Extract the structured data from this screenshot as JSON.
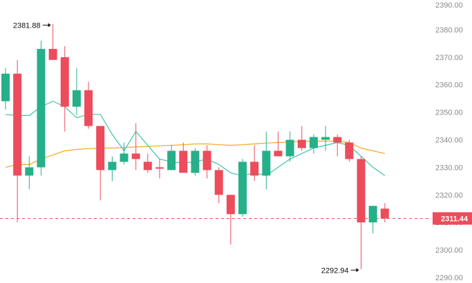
{
  "chart_data": {
    "type": "candlestick",
    "ylim": [
      2290,
      2390
    ],
    "y_ticks": [
      "2390.00",
      "2380.00",
      "2370.00",
      "2360.00",
      "2350.00",
      "2340.00",
      "2330.00",
      "2320.00",
      "2310.00",
      "2300.00",
      "2290.00"
    ],
    "grid": false,
    "colors": {
      "up": "#26b08a",
      "down": "#ec4c5b",
      "ma_short": "#3cc4a6",
      "ma_long": "#f4a81d",
      "current_price": "#ec4c5b",
      "axis_text": "#8a8a8a"
    },
    "candles": [
      {
        "open": 2354.0,
        "high": 2366.0,
        "low": 2351.0,
        "close": 2364.0
      },
      {
        "open": 2364.0,
        "high": 2369.0,
        "low": 2310.0,
        "close": 2327.0
      },
      {
        "open": 2327.0,
        "high": 2334.0,
        "low": 2322.0,
        "close": 2330.0
      },
      {
        "open": 2330.0,
        "high": 2376.0,
        "low": 2327.0,
        "close": 2373.0
      },
      {
        "open": 2373.0,
        "high": 2382.0,
        "low": 2369.0,
        "close": 2369.0
      },
      {
        "open": 2370.0,
        "high": 2374.0,
        "low": 2343.0,
        "close": 2352.0
      },
      {
        "open": 2352.0,
        "high": 2366.0,
        "low": 2349.0,
        "close": 2358.0
      },
      {
        "open": 2358.0,
        "high": 2361.0,
        "low": 2344.0,
        "close": 2345.0
      },
      {
        "open": 2345.0,
        "high": 2345.0,
        "low": 2318.0,
        "close": 2329.0
      },
      {
        "open": 2329.0,
        "high": 2334.0,
        "low": 2325.0,
        "close": 2332.0
      },
      {
        "open": 2332.0,
        "high": 2339.0,
        "low": 2331.0,
        "close": 2335.0
      },
      {
        "open": 2335.0,
        "high": 2346.0,
        "low": 2329.0,
        "close": 2333.0
      },
      {
        "open": 2332.0,
        "high": 2335.0,
        "low": 2328.0,
        "close": 2329.0
      },
      {
        "open": 2330.0,
        "high": 2333.0,
        "low": 2326.0,
        "close": 2329.5
      },
      {
        "open": 2329.0,
        "high": 2338.0,
        "low": 2329.0,
        "close": 2336.0
      },
      {
        "open": 2336.0,
        "high": 2339.0,
        "low": 2328.0,
        "close": 2328.0
      },
      {
        "open": 2328.0,
        "high": 2337.0,
        "low": 2327.0,
        "close": 2336.0
      },
      {
        "open": 2336.0,
        "high": 2338.0,
        "low": 2326.0,
        "close": 2329.0
      },
      {
        "open": 2329.0,
        "high": 2330.0,
        "low": 2317.0,
        "close": 2320.0
      },
      {
        "open": 2320.0,
        "high": 2320.0,
        "low": 2302.0,
        "close": 2313.0
      },
      {
        "open": 2313.0,
        "high": 2333.0,
        "low": 2312.0,
        "close": 2332.0
      },
      {
        "open": 2332.0,
        "high": 2338.0,
        "low": 2325.0,
        "close": 2327.0
      },
      {
        "open": 2327.0,
        "high": 2343.0,
        "low": 2322.0,
        "close": 2336.0
      },
      {
        "open": 2336.0,
        "high": 2343.0,
        "low": 2334.0,
        "close": 2334.0
      },
      {
        "open": 2334.0,
        "high": 2343.0,
        "low": 2332.0,
        "close": 2340.0
      },
      {
        "open": 2340.0,
        "high": 2345.0,
        "low": 2336.0,
        "close": 2337.0
      },
      {
        "open": 2337.0,
        "high": 2342.0,
        "low": 2335.0,
        "close": 2341.0
      },
      {
        "open": 2340.0,
        "high": 2345.0,
        "low": 2336.0,
        "close": 2341.0
      },
      {
        "open": 2341.0,
        "high": 2342.0,
        "low": 2334.0,
        "close": 2339.0
      },
      {
        "open": 2339.0,
        "high": 2340.0,
        "low": 2332.0,
        "close": 2333.0
      },
      {
        "open": 2333.0,
        "high": 2334.0,
        "low": 2293.0,
        "close": 2310.0
      },
      {
        "open": 2310.0,
        "high": 2316.0,
        "low": 2306.0,
        "close": 2316.0
      },
      {
        "open": 2315.0,
        "high": 2317.0,
        "low": 2310.0,
        "close": 2311.44
      }
    ],
    "ma_short": [
      2349.2,
      2348.8,
      2348.8,
      2352.0,
      2354.0,
      2352.0,
      2348.0,
      2349.2,
      2349.2,
      2342.0,
      2336.0,
      2343.0,
      2338.0,
      2333.0,
      2332.0,
      2331.6,
      2332.0,
      2333.0,
      2331.0,
      2328.0,
      2327.0,
      2328.0,
      2327.0,
      2330.0,
      2333.0,
      2335.0,
      2337.0,
      2338.0,
      2339.0,
      2338.0,
      2334.0,
      2330.0,
      2327.0
    ],
    "ma_long": [
      2330.0,
      2331.0,
      2331.0,
      2333.0,
      2334.5,
      2336.0,
      2336.5,
      2336.8,
      2337.0,
      2337.0,
      2337.2,
      2337.4,
      2337.6,
      2337.8,
      2338.0,
      2338.2,
      2338.5,
      2338.5,
      2338.2,
      2338.0,
      2338.2,
      2338.5,
      2338.8,
      2339.0,
      2339.2,
      2339.4,
      2339.5,
      2339.5,
      2339.5,
      2339.0,
      2337.0,
      2336.0,
      2335.0
    ],
    "current_price": 2311.44,
    "current_price_label": "2311.44",
    "annotations": [
      {
        "text": "2381.88",
        "value": 2381.88,
        "candle": 4,
        "side": "left"
      },
      {
        "text": "2292.94",
        "value": 2292.94,
        "candle": 30,
        "side": "left"
      }
    ]
  }
}
